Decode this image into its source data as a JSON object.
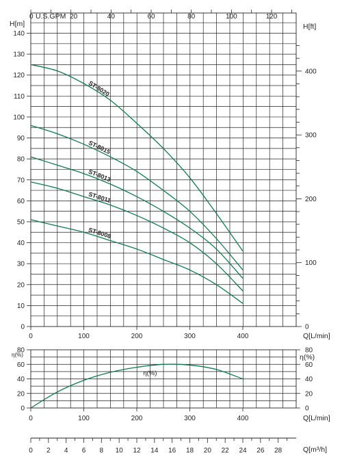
{
  "colors": {
    "curve": "#0e7a4a",
    "grid": "#222222"
  },
  "chart_data": [
    {
      "type": "line",
      "name_key": "head",
      "ylabel_left": "H[m]",
      "ylabel_right": "H[ft]",
      "top_axis_label": "U.S.GPM",
      "xlabel": "Q[L/min]",
      "xlim": [
        0,
        400
      ],
      "ylim": [
        0,
        140
      ],
      "x_ticks": [
        0,
        100,
        200,
        300,
        400
      ],
      "y_ticks": [
        0,
        10,
        20,
        30,
        40,
        50,
        60,
        70,
        80,
        90,
        100,
        110,
        120,
        130,
        140
      ],
      "ft_ticks": [
        0,
        100,
        200,
        300,
        400
      ],
      "gpm_ticks": [
        0,
        20,
        40,
        60,
        80,
        100,
        120
      ],
      "series": [
        {
          "name": "ST-8020",
          "x": [
            0,
            50,
            100,
            150,
            200,
            250,
            300,
            350,
            400
          ],
          "y": [
            125,
            122,
            116,
            108,
            97,
            85,
            71,
            54,
            36
          ]
        },
        {
          "name": "ST-8015",
          "x": [
            0,
            50,
            100,
            150,
            200,
            250,
            300,
            350,
            400
          ],
          "y": [
            96,
            92,
            87,
            81,
            74,
            65,
            55,
            42,
            27
          ]
        },
        {
          "name": "ST-8013",
          "x": [
            0,
            50,
            100,
            150,
            200,
            250,
            300,
            350,
            400
          ],
          "y": [
            81,
            77,
            73,
            68,
            62,
            55,
            47,
            37,
            23
          ]
        },
        {
          "name": "ST-8011",
          "x": [
            0,
            50,
            100,
            150,
            200,
            250,
            300,
            350,
            400
          ],
          "y": [
            69,
            66,
            62,
            58,
            53,
            47,
            40,
            30,
            17
          ]
        },
        {
          "name": "ST-8008",
          "x": [
            0,
            50,
            100,
            150,
            200,
            250,
            300,
            350,
            400
          ],
          "y": [
            51,
            48,
            45,
            41,
            37,
            32,
            27,
            20,
            11
          ]
        }
      ]
    },
    {
      "type": "line",
      "name_key": "efficiency",
      "ylabel_left": "η(%)",
      "ylabel_right": "η(%)",
      "xlabel": "Q[L/min]",
      "xlim": [
        0,
        400
      ],
      "ylim": [
        0,
        80
      ],
      "x_ticks": [
        0,
        100,
        200,
        300,
        400
      ],
      "y_ticks": [
        0,
        20,
        40,
        60,
        80
      ],
      "series": [
        {
          "name": "η(%)",
          "x": [
            0,
            50,
            100,
            150,
            200,
            250,
            300,
            350,
            400
          ],
          "y": [
            0,
            22,
            38,
            49,
            56,
            60,
            59,
            53,
            40
          ]
        }
      ]
    },
    {
      "type": "axis",
      "name_key": "flow-m3h",
      "xlabel": "Q[m³/h]",
      "xlim": [
        0,
        30
      ],
      "x_ticks": [
        0,
        2,
        4,
        6,
        8,
        10,
        12,
        14,
        16,
        18,
        20,
        22,
        24,
        26,
        28
      ]
    }
  ]
}
